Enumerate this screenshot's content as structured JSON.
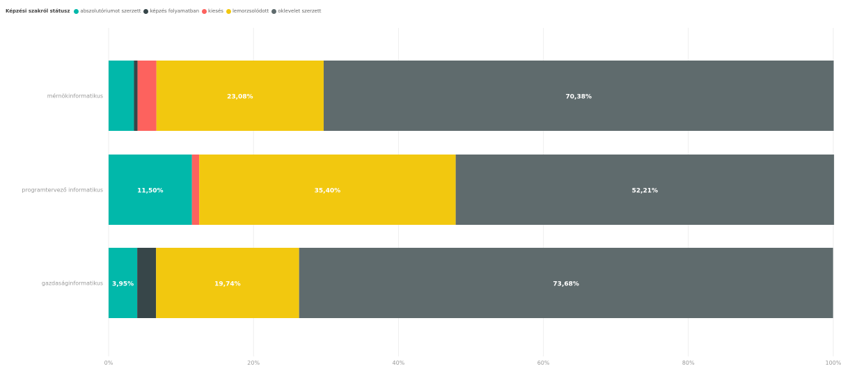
{
  "legend": {
    "title": "Képzési szakról státusz"
  },
  "chart_data": {
    "type": "bar",
    "orientation": "horizontal",
    "stacked": "100%",
    "categories": [
      "mérnökinformatikus",
      "programtervező informatikus",
      "gazdaságinformatikus"
    ],
    "series": [
      {
        "name": "abszolutóriumot szerzett",
        "color": "#01b8aa",
        "values": [
          3.5,
          11.5,
          3.95
        ]
      },
      {
        "name": "képzés folyamatban",
        "color": "#374649",
        "values": [
          0.5,
          0.0,
          2.6
        ]
      },
      {
        "name": "kiesés",
        "color": "#fd625e",
        "values": [
          2.6,
          1.0,
          0.0
        ]
      },
      {
        "name": "lemorzsolódott",
        "color": "#f2c80f",
        "values": [
          23.08,
          35.4,
          19.74
        ]
      },
      {
        "name": "oklevelet szerzett",
        "color": "#5f6b6d",
        "values": [
          70.38,
          52.21,
          73.68
        ]
      }
    ],
    "data_labels": [
      {
        "category": "mérnökinformatikus",
        "series": "lemorzsolódott",
        "text": "23,08%"
      },
      {
        "category": "mérnökinformatikus",
        "series": "oklevelet szerzett",
        "text": "70,38%"
      },
      {
        "category": "programtervező informatikus",
        "series": "abszolutóriumot szerzett",
        "text": "11,50%"
      },
      {
        "category": "programtervező informatikus",
        "series": "lemorzsolódott",
        "text": "35,40%"
      },
      {
        "category": "programtervező informatikus",
        "series": "oklevelet szerzett",
        "text": "52,21%"
      },
      {
        "category": "gazdaságinformatikus",
        "series": "abszolutóriumot szerzett",
        "text": "3,95%"
      },
      {
        "category": "gazdaságinformatikus",
        "series": "lemorzsolódott",
        "text": "19,74%"
      },
      {
        "category": "gazdaságinformatikus",
        "series": "oklevelet szerzett",
        "text": "73,68%"
      }
    ],
    "xlim": [
      0,
      100
    ],
    "xticks": [
      0,
      20,
      40,
      60,
      80,
      100
    ],
    "xtick_labels": [
      "0%",
      "20%",
      "40%",
      "60%",
      "80%",
      "100%"
    ],
    "grid": true,
    "legend_position": "top-left"
  }
}
